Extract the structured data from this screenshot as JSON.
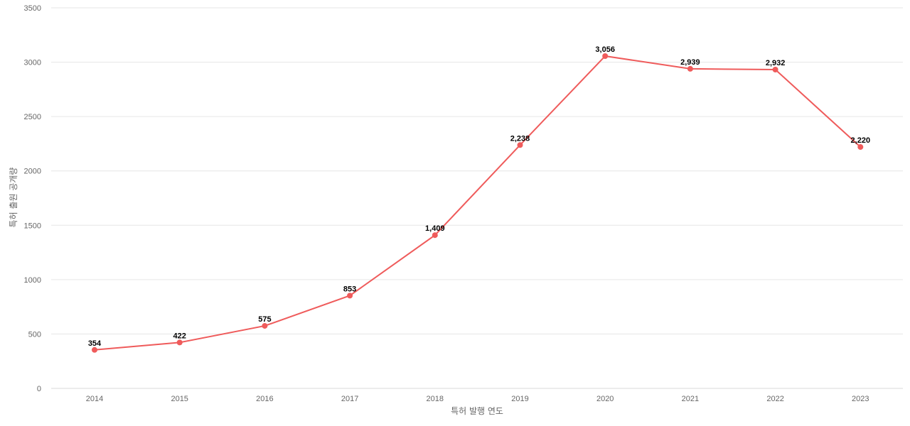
{
  "chart_data": {
    "type": "line",
    "title": "",
    "xlabel": "특허 발행 연도",
    "ylabel": "특허 출원 공개량",
    "x": [
      "2014",
      "2015",
      "2016",
      "2017",
      "2018",
      "2019",
      "2020",
      "2021",
      "2022",
      "2023"
    ],
    "series": [
      {
        "values": [
          354,
          422,
          575,
          853,
          1409,
          2238,
          3056,
          2939,
          2932,
          2220
        ],
        "labels": [
          "354",
          "422",
          "575",
          "853",
          "1,409",
          "2,238",
          "3,056",
          "2,939",
          "2,932",
          "2,220"
        ],
        "color": "#ef5b5b"
      }
    ],
    "ylim": [
      0,
      3500
    ],
    "yticks": [
      0,
      500,
      1000,
      1500,
      2000,
      2500,
      3000,
      3500
    ],
    "ytick_labels": [
      "0",
      "500",
      "1000",
      "1500",
      "2000",
      "2500",
      "3000",
      "3500"
    ],
    "grid": true,
    "legend": "none"
  }
}
